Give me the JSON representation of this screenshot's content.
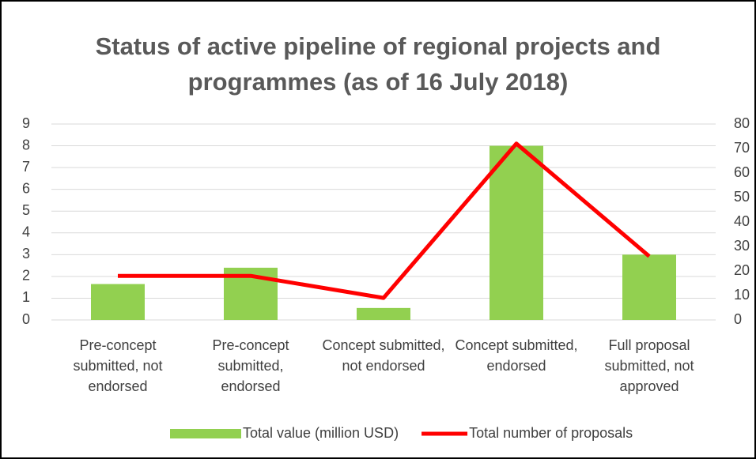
{
  "chart_data": {
    "type": "bar",
    "title": "Status of active pipeline of regional projects and programmes (as of 16 July 2018)",
    "categories": [
      "Pre-concept submitted, not endorsed",
      "Pre-concept submitted, endorsed",
      "Concept submitted, not endorsed",
      "Concept submitted, endorsed",
      "Full proposal submitted, not approved"
    ],
    "series": [
      {
        "name": "Total value (million USD)",
        "type": "bar",
        "color": "#92d050",
        "values": [
          1.65,
          2.4,
          0.55,
          8.0,
          3.0
        ]
      },
      {
        "name": "Total number of proposals",
        "type": "line",
        "axis": "y2",
        "color": "#ff0000",
        "values": [
          18,
          18,
          9,
          72,
          26
        ]
      }
    ],
    "ylim": [
      0,
      9
    ],
    "yticks": [
      0,
      1,
      2,
      3,
      4,
      5,
      6,
      7,
      8,
      9
    ],
    "y2lim": [
      0,
      80
    ],
    "y2ticks": [
      0,
      10,
      20,
      30,
      40,
      50,
      60,
      70,
      80
    ],
    "grid": true,
    "legend": "bottom"
  }
}
